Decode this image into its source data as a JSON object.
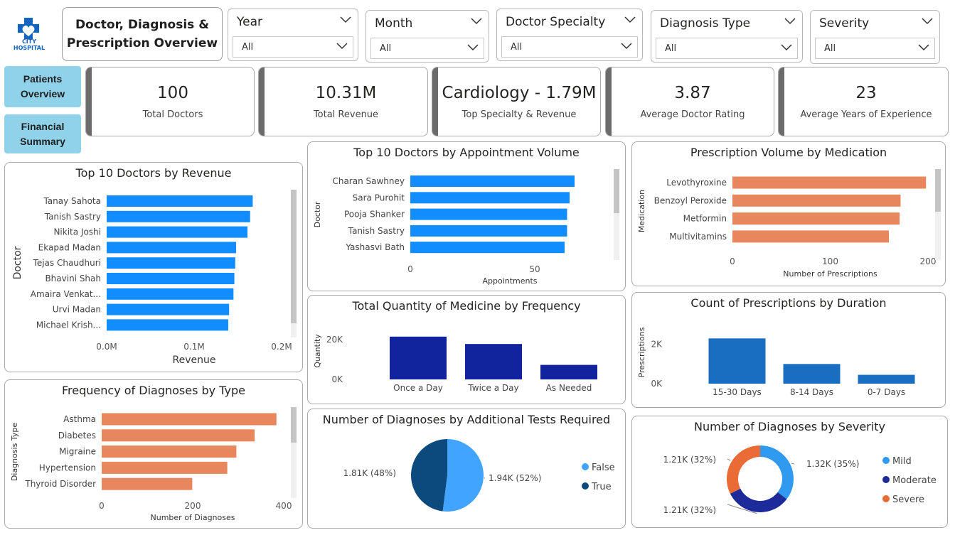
{
  "logo": {
    "line1": "CITY",
    "line2": "HOSPITAL",
    "color": "#1565c0"
  },
  "report_title": {
    "line1": "Doctor, Diagnosis &",
    "line2": "Prescription Overview"
  },
  "slicers": [
    {
      "label": "Year",
      "value": "All"
    },
    {
      "label": "Month",
      "value": "All"
    },
    {
      "label": "Doctor Specialty",
      "value": "All"
    },
    {
      "label": "Diagnosis Type",
      "value": "All"
    },
    {
      "label": "Severity",
      "value": "All"
    }
  ],
  "nav": {
    "patients_line1": "Patients",
    "patients_line2": "Overview",
    "financial_line1": "Financial",
    "financial_line2": "Summary",
    "color": "#8fd2ea"
  },
  "kpis": [
    {
      "value": "100",
      "label": "Total Doctors"
    },
    {
      "value": "10.31M",
      "label": "Total Revenue"
    },
    {
      "value": "Cardiology - 1.79M",
      "label": "Top Specialty & Revenue"
    },
    {
      "value": "3.87",
      "label": "Average Doctor Rating"
    },
    {
      "value": "23",
      "label": "Average Years of Experience"
    }
  ],
  "chart_data": [
    {
      "id": "revenue",
      "type": "bar",
      "orientation": "horizontal",
      "title": "Top 10 Doctors by Revenue",
      "xlabel": "Revenue",
      "ylabel": "Doctor",
      "categories": [
        "Tanay Sahota",
        "Tanish Sastry",
        "Nikita Joshi",
        "Ekapad Madan",
        "Tejas Chaudhuri",
        "Bhavini Shah",
        "Amaira Venkat...",
        "Urvi Madan",
        "Michael Krish..."
      ],
      "values": [
        0.167,
        0.164,
        0.161,
        0.148,
        0.147,
        0.146,
        0.145,
        0.14,
        0.139
      ],
      "xlim": [
        0,
        0.2
      ],
      "ticks": [
        0,
        0.1,
        0.2
      ],
      "tick_labels": [
        "0.0M",
        "0.1M",
        "0.2M"
      ],
      "color": "#118dff"
    },
    {
      "id": "appointments",
      "type": "bar",
      "orientation": "horizontal",
      "title": "Top 10 Doctors by Appointment Volume",
      "xlabel": "Appointments",
      "ylabel": "Doctor",
      "categories": [
        "Charan Sawhney",
        "Sara Purohit",
        "Pooja Shanker",
        "Tanish Sastry",
        "Yashasvi Bath"
      ],
      "values": [
        66,
        64,
        63,
        63,
        62
      ],
      "xlim": [
        0,
        80
      ],
      "ticks": [
        0,
        50
      ],
      "tick_labels": [
        "0",
        "50"
      ],
      "color": "#118dff"
    },
    {
      "id": "medication",
      "type": "bar",
      "orientation": "horizontal",
      "title": "Prescription Volume by Medication",
      "xlabel": "Number of Prescriptions",
      "ylabel": "Medication",
      "categories": [
        "Levothyroxine",
        "Benzoyl Peroxide",
        "Metformin",
        "Multivitamins"
      ],
      "values": [
        198,
        172,
        171,
        160
      ],
      "xlim": [
        0,
        200
      ],
      "ticks": [
        0,
        100,
        200
      ],
      "tick_labels": [
        "0",
        "100",
        "200"
      ],
      "color": "#e8875d"
    },
    {
      "id": "diagnoses_type",
      "type": "bar",
      "orientation": "horizontal",
      "title": "Frequency of Diagnoses by Type",
      "xlabel": "Number of Diagnoses",
      "ylabel": "Diagnosis Type",
      "categories": [
        "Asthma",
        "Diabetes",
        "Migraine",
        "Hypertension",
        "Thyroid Disorder"
      ],
      "values": [
        384,
        336,
        296,
        276,
        199
      ],
      "xlim": [
        0,
        400
      ],
      "ticks": [
        0,
        200,
        400
      ],
      "tick_labels": [
        "0",
        "200",
        "400"
      ],
      "color": "#e8875d"
    },
    {
      "id": "frequency",
      "type": "bar",
      "orientation": "vertical",
      "title": "Total Quantity of Medicine by Frequency",
      "xlabel": "",
      "ylabel": "Quantity",
      "categories": [
        "Once a Day",
        "Twice a Day",
        "As Needed"
      ],
      "values": [
        21500,
        17800,
        7300
      ],
      "ylim": [
        0,
        25000
      ],
      "ticks": [
        0,
        20000
      ],
      "tick_labels": [
        "0K",
        "20K"
      ],
      "color": "#12239e"
    },
    {
      "id": "duration",
      "type": "bar",
      "orientation": "vertical",
      "title": "Count of Prescriptions by Duration",
      "xlabel": "",
      "ylabel": "Prescriptions",
      "categories": [
        "15-30 Days",
        "8-14 Days",
        "0-7 Days"
      ],
      "values": [
        2300,
        1000,
        450
      ],
      "ylim": [
        0,
        2600
      ],
      "ticks": [
        0,
        2000
      ],
      "tick_labels": [
        "0K",
        "2K"
      ],
      "color": "#1a6ec2"
    },
    {
      "id": "tests",
      "type": "pie",
      "title": "Number of Diagnoses by Additional Tests Required",
      "slices": [
        {
          "name": "False",
          "value": 1.94,
          "label": "1.94K (52%)",
          "percent": 52,
          "color": "#41a4ff"
        },
        {
          "name": "True",
          "value": 1.81,
          "label": "1.81K (48%)",
          "percent": 48,
          "color": "#0c4a7e"
        }
      ],
      "legend": "right"
    },
    {
      "id": "severity",
      "type": "pie",
      "donut": true,
      "title": "Number of Diagnoses by Severity",
      "slices": [
        {
          "name": "Mild",
          "value": 1.32,
          "label": "1.32K (35%)",
          "percent": 35,
          "color": "#2f9af0"
        },
        {
          "name": "Moderate",
          "value": 1.21,
          "label": "1.21K (32%)",
          "percent": 32,
          "color": "#1d2a9a"
        },
        {
          "name": "Severe",
          "value": 1.21,
          "label": "1.21K (32%)",
          "percent": 32,
          "color": "#ea6b35"
        }
      ],
      "legend": "right"
    }
  ]
}
